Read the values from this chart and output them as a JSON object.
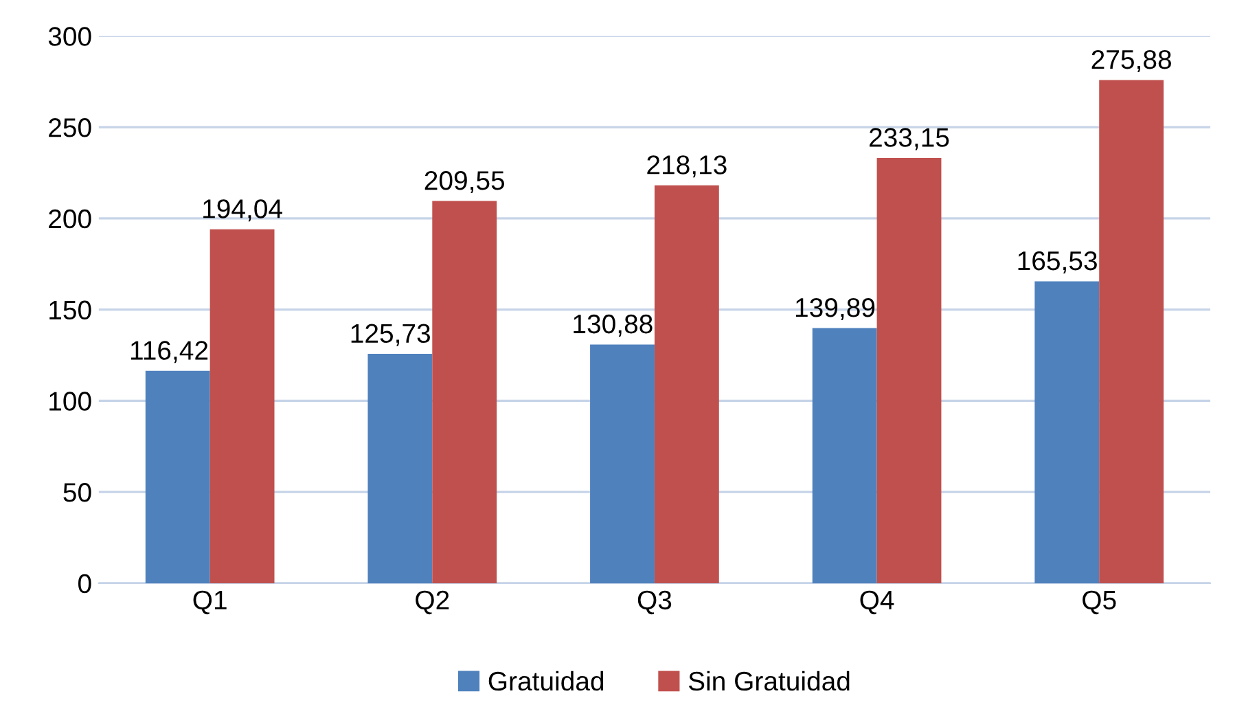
{
  "chart_data": {
    "type": "bar",
    "categories": [
      "Q1",
      "Q2",
      "Q3",
      "Q4",
      "Q5"
    ],
    "series": [
      {
        "name": "Gratuidad",
        "color": "#4f81bd",
        "values": [
          116.42,
          125.73,
          130.88,
          139.89,
          165.53
        ],
        "value_labels": [
          "116,42",
          "125,73",
          "130,88",
          "139,89",
          "165,53"
        ]
      },
      {
        "name": "Sin Gratuidad",
        "color": "#c0504d",
        "values": [
          194.04,
          209.55,
          218.13,
          233.15,
          275.88
        ],
        "value_labels": [
          "194,04",
          "209,55",
          "218,13",
          "233,15",
          "275,88"
        ]
      }
    ],
    "ylim": [
      0,
      300
    ],
    "yticks": [
      0,
      50,
      100,
      150,
      200,
      250,
      300
    ],
    "grid": "y",
    "legend": "bottom"
  }
}
